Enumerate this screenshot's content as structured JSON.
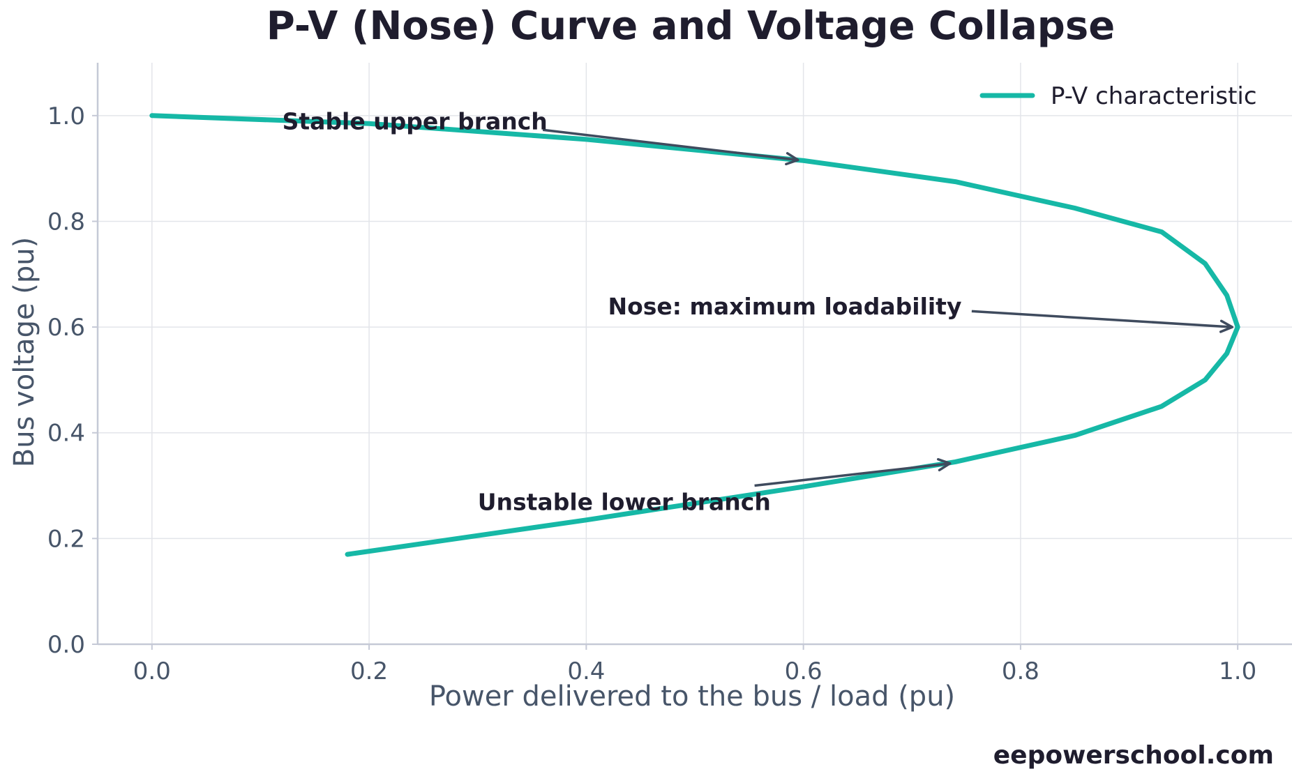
{
  "chart_data": {
    "type": "line",
    "title": "P-V (Nose) Curve and Voltage Collapse",
    "xlabel": "Power delivered to the bus / load (pu)",
    "ylabel": "Bus voltage (pu)",
    "xlim": [
      -0.05,
      1.05
    ],
    "ylim": [
      0.0,
      1.1
    ],
    "xticks": [
      0.0,
      0.2,
      0.4,
      0.6,
      0.8,
      1.0
    ],
    "xtick_labels": [
      "0.0",
      "0.2",
      "0.4",
      "0.6",
      "0.8",
      "1.0"
    ],
    "yticks": [
      0.0,
      0.2,
      0.4,
      0.6,
      0.8,
      1.0
    ],
    "ytick_labels": [
      "0.0",
      "0.2",
      "0.4",
      "0.6",
      "0.8",
      "1.0"
    ],
    "grid": true,
    "legend_position": "top-right",
    "series": [
      {
        "name": "P-V characteristic",
        "color": "#16b8a6",
        "x": [
          0.0,
          0.2,
          0.4,
          0.6,
          0.74,
          0.85,
          0.93,
          0.97,
          0.99,
          1.0,
          0.99,
          0.97,
          0.93,
          0.85,
          0.74,
          0.6,
          0.4,
          0.18
        ],
        "y": [
          1.0,
          0.985,
          0.955,
          0.915,
          0.875,
          0.825,
          0.78,
          0.72,
          0.66,
          0.6,
          0.55,
          0.5,
          0.45,
          0.395,
          0.345,
          0.298,
          0.235,
          0.17
        ]
      }
    ],
    "annotations": [
      {
        "text": "Stable upper branch",
        "text_x": 0.12,
        "text_y": 0.99,
        "arrow_from": [
          0.36,
          0.973
        ],
        "arrow_to": [
          0.595,
          0.916
        ]
      },
      {
        "text": "Nose: maximum loadability",
        "text_x": 0.42,
        "text_y": 0.64,
        "arrow_from": [
          0.755,
          0.63
        ],
        "arrow_to": [
          0.995,
          0.6
        ]
      },
      {
        "text": "Unstable lower branch",
        "text_x": 0.3,
        "text_y": 0.27,
        "arrow_from": [
          0.555,
          0.3
        ],
        "arrow_to": [
          0.735,
          0.342
        ]
      }
    ]
  },
  "watermark": "eepowerschool.com"
}
